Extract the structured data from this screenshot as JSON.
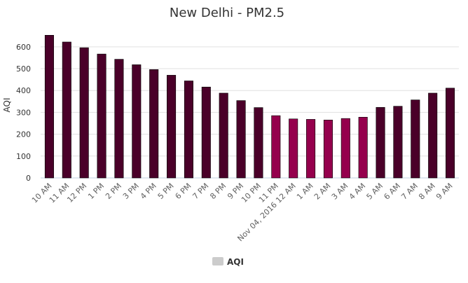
{
  "chart_data": {
    "type": "bar",
    "title": "New Delhi - PM2.5",
    "ylabel": "AQI",
    "xlabel": "",
    "ylim": [
      0,
      670
    ],
    "yticks": [
      0,
      100,
      200,
      300,
      400,
      500,
      600
    ],
    "grid": true,
    "legend_position": "bottom-center",
    "categories": [
      "10 AM",
      "11 AM",
      "12 PM",
      "1 PM",
      "2 PM",
      "3 PM",
      "4 PM",
      "5 PM",
      "6 PM",
      "7 PM",
      "8 PM",
      "9 PM",
      "10 PM",
      "11 PM",
      "Nov 04, 2016 12 AM",
      "1 AM",
      "2 AM",
      "3 AM",
      "4 AM",
      "5 AM",
      "6 AM",
      "7 AM",
      "8 AM",
      "9 AM"
    ],
    "series": [
      {
        "name": "AQI",
        "values": [
          653,
          622,
          596,
          567,
          543,
          518,
          496,
          470,
          444,
          416,
          388,
          354,
          322,
          285,
          270,
          268,
          265,
          272,
          278,
          323,
          328,
          357,
          388,
          411
        ],
        "colors": [
          "#4a0029",
          "#4a0029",
          "#4a0029",
          "#4a0029",
          "#4a0029",
          "#4a0029",
          "#4a0029",
          "#4a0029",
          "#4a0029",
          "#4a0029",
          "#4a0029",
          "#4a0029",
          "#4a0029",
          "#95004d",
          "#95004d",
          "#95004d",
          "#95004d",
          "#95004d",
          "#95004d",
          "#4a0029",
          "#4a0029",
          "#4a0029",
          "#4a0029",
          "#4a0029"
        ]
      }
    ],
    "colors": {
      "very_poor": "#4a0029",
      "poor": "#95004d",
      "grid": "#e0e0e0",
      "legend_swatch": "#cccccc"
    }
  }
}
